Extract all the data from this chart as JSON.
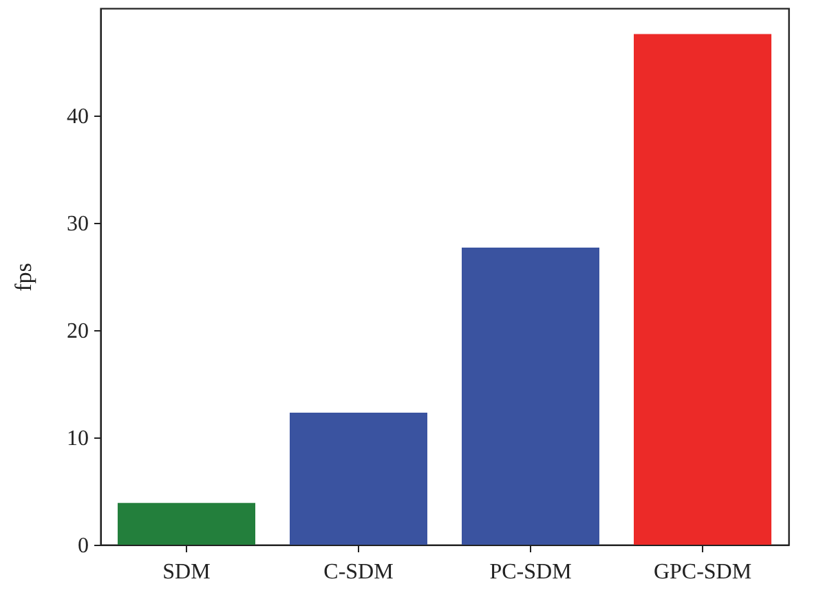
{
  "chart_data": {
    "type": "bar",
    "ylabel": "fps",
    "categories": [
      "SDM",
      "C-SDM",
      "PC-SDM",
      "GPC-SDM"
    ],
    "values": [
      3.9,
      12.3,
      27.7,
      47.6
    ],
    "colors": [
      "#237f3c",
      "#3a53a0",
      "#3a53a0",
      "#ec2a28"
    ],
    "ylim": [
      0,
      50
    ],
    "yticks": [
      0,
      10,
      20,
      30,
      40
    ],
    "grid": false
  }
}
